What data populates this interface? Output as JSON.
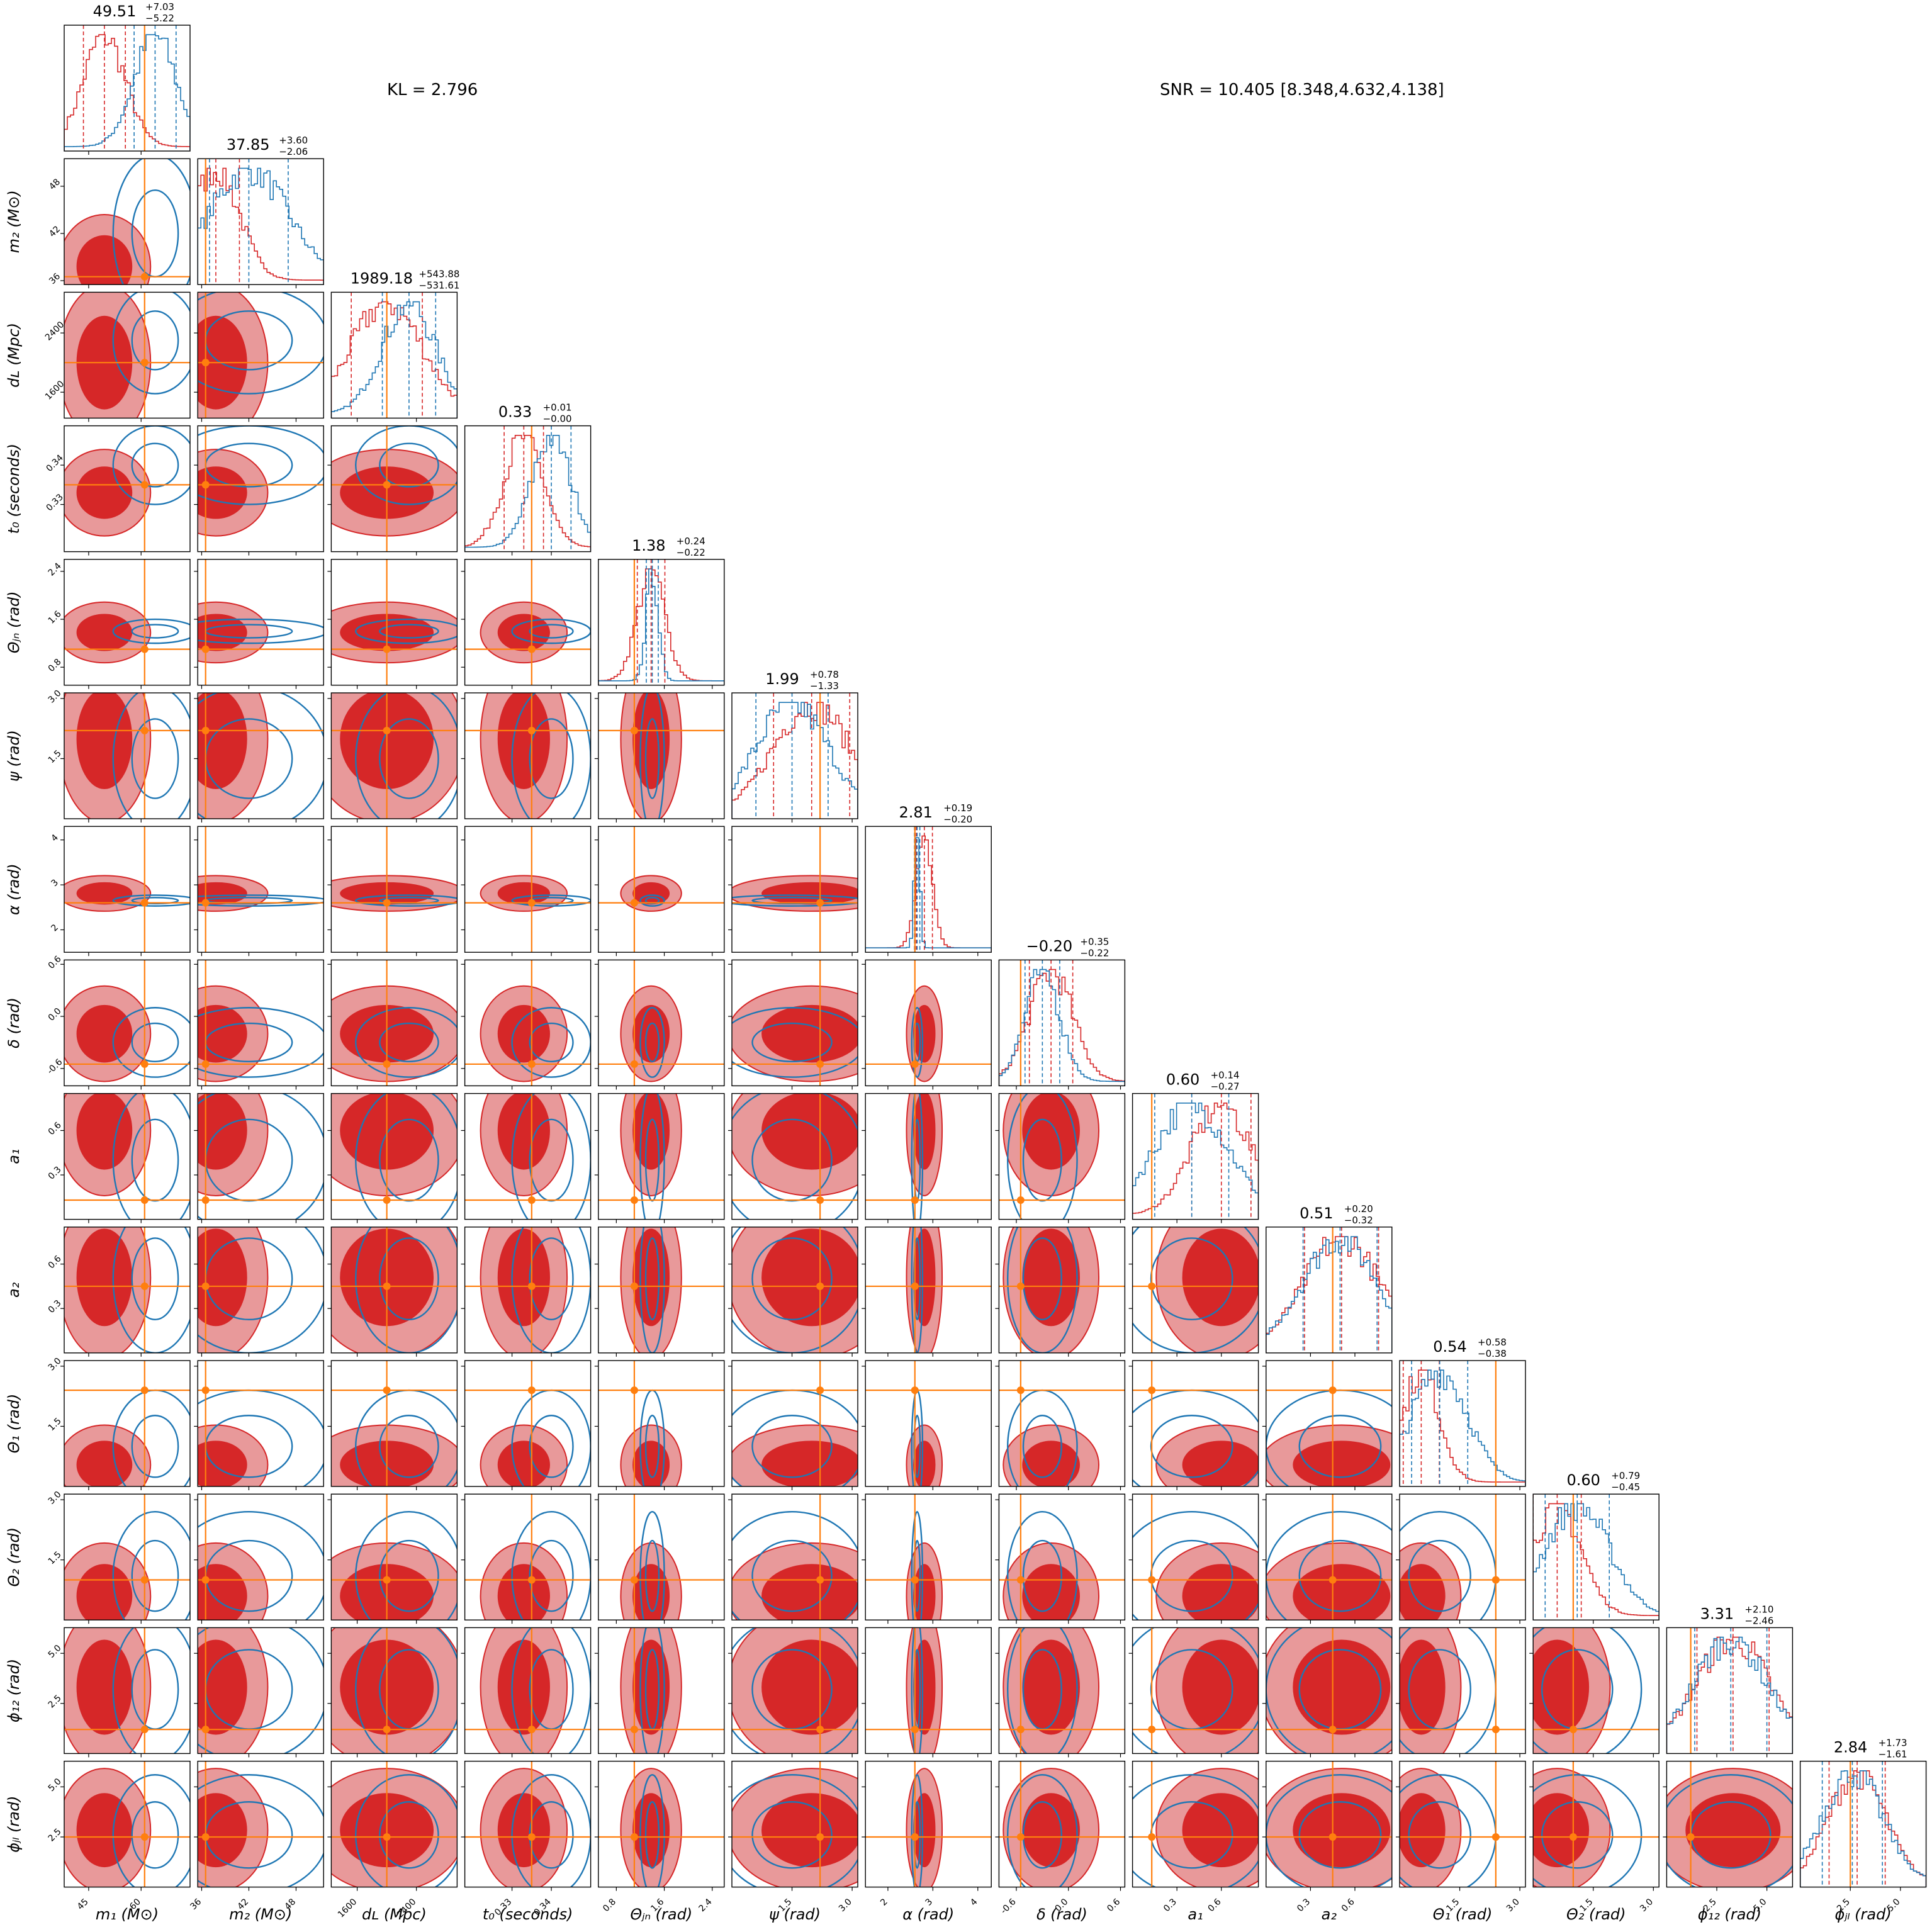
{
  "header": {
    "kl_text": "KL = 2.796",
    "snr_text": "SNR = 10.405 [8.348,4.632,4.138]"
  },
  "chart_data": {
    "type": "corner",
    "colors": {
      "model_a": "#d62728",
      "model_b": "#1f77b4",
      "truth": "#ff7f0e"
    },
    "series": [
      {
        "color": "#d62728"
      },
      {
        "color": "#1f77b4"
      }
    ],
    "parameters": [
      {
        "label": "m₁ (M⊙)",
        "lim": [
          38,
          74
        ],
        "ticks": [
          "45",
          "60"
        ],
        "tick_values": [
          45,
          60
        ],
        "summary": {
          "median": "49.51",
          "plus": "7.03",
          "minus": "5.22"
        },
        "truth": 61,
        "a": {
          "mu": 49.5,
          "sd": 6
        },
        "b": {
          "mu": 64,
          "sd": 6
        }
      },
      {
        "label": "m₂ (M⊙)",
        "lim": [
          35.5,
          51.5
        ],
        "ticks": [
          "36",
          "42",
          "48"
        ],
        "tick_values": [
          36,
          42,
          48
        ],
        "summary": {
          "median": "37.85",
          "plus": "3.60",
          "minus": "2.06"
        },
        "truth": 36.5,
        "a": {
          "mu": 37.8,
          "sd": 3
        },
        "b": {
          "mu": 42,
          "sd": 5
        }
      },
      {
        "label": "dʟ (Mpc)",
        "lim": [
          1250,
          2950
        ],
        "ticks": [
          "1600",
          "2400"
        ],
        "tick_values": [
          1600,
          2400
        ],
        "summary": {
          "median": "1989.18",
          "plus": "543.88",
          "minus": "531.61"
        },
        "truth": 2000,
        "a": {
          "mu": 2000,
          "sd": 480
        },
        "b": {
          "mu": 2300,
          "sd": 360
        }
      },
      {
        "label": "t₀ (seconds)",
        "lim": [
          0.318,
          0.35
        ],
        "ticks": [
          "0.33",
          "0.34"
        ],
        "tick_values": [
          0.33,
          0.34
        ],
        "summary": {
          "median": "0.33",
          "plus": "0.01",
          "minus": "0.00"
        },
        "truth": 0.335,
        "a": {
          "mu": 0.333,
          "sd": 0.005
        },
        "b": {
          "mu": 0.34,
          "sd": 0.005
        }
      },
      {
        "label": "Θⱼₙ (rad)",
        "lim": [
          0.5,
          2.6
        ],
        "ticks": [
          "0.8",
          "1.6",
          "2.4"
        ],
        "tick_values": [
          0.8,
          1.6,
          2.4
        ],
        "summary": {
          "median": "1.38",
          "plus": "0.24",
          "minus": "0.22"
        },
        "truth": 1.1,
        "a": {
          "mu": 1.38,
          "sd": 0.23
        },
        "b": {
          "mu": 1.4,
          "sd": 0.1
        }
      },
      {
        "label": "ψ (rad)",
        "lim": [
          0.0,
          3.14
        ],
        "ticks": [
          "1.5",
          "3.0"
        ],
        "tick_values": [
          1.5,
          3.0
        ],
        "summary": {
          "median": "1.99",
          "plus": "0.78",
          "minus": "1.33"
        },
        "truth": 2.2,
        "a": {
          "mu": 1.99,
          "sd": 0.95
        },
        "b": {
          "mu": 1.5,
          "sd": 0.9
        }
      },
      {
        "label": "α (rad)",
        "lim": [
          1.5,
          4.3
        ],
        "ticks": [
          "2",
          "3",
          "4"
        ],
        "tick_values": [
          2,
          3,
          4
        ],
        "summary": {
          "median": "2.81",
          "plus": "0.19",
          "minus": "0.20"
        },
        "truth": 2.6,
        "a": {
          "mu": 2.81,
          "sd": 0.18
        },
        "b": {
          "mu": 2.65,
          "sd": 0.06
        }
      },
      {
        "label": "δ (rad)",
        "lim": [
          -0.8,
          0.65
        ],
        "ticks": [
          "-0.6",
          "0.0",
          "0.6"
        ],
        "tick_values": [
          -0.6,
          0.0,
          0.6
        ],
        "summary": {
          "median": "−0.20",
          "plus": "0.35",
          "minus": "0.22"
        },
        "truth": -0.55,
        "a": {
          "mu": -0.2,
          "sd": 0.25
        },
        "b": {
          "mu": -0.3,
          "sd": 0.2
        }
      },
      {
        "label": "a₁",
        "lim": [
          0.0,
          0.85
        ],
        "ticks": [
          "0.3",
          "0.6"
        ],
        "tick_values": [
          0.3,
          0.6
        ],
        "summary": {
          "median": "0.60",
          "plus": "0.14",
          "minus": "0.27"
        },
        "truth": 0.13,
        "a": {
          "mu": 0.6,
          "sd": 0.2
        },
        "b": {
          "mu": 0.4,
          "sd": 0.25
        }
      },
      {
        "label": "a₂",
        "lim": [
          0.0,
          0.85
        ],
        "ticks": [
          "0.3",
          "0.6"
        ],
        "tick_values": [
          0.3,
          0.6
        ],
        "summary": {
          "median": "0.51",
          "plus": "0.20",
          "minus": "0.32"
        },
        "truth": 0.45,
        "a": {
          "mu": 0.51,
          "sd": 0.25
        },
        "b": {
          "mu": 0.5,
          "sd": 0.25
        }
      },
      {
        "label": "Θ₁ (rad)",
        "lim": [
          0.0,
          3.14
        ],
        "ticks": [
          "1.5",
          "3.0"
        ],
        "tick_values": [
          1.5,
          3.0
        ],
        "summary": {
          "median": "0.54",
          "plus": "0.58",
          "minus": "0.38"
        },
        "truth": 2.4,
        "a": {
          "mu": 0.54,
          "sd": 0.45
        },
        "b": {
          "mu": 1.0,
          "sd": 0.7
        }
      },
      {
        "label": "Θ₂ (rad)",
        "lim": [
          0.0,
          3.14
        ],
        "ticks": [
          "1.5",
          "3.0"
        ],
        "tick_values": [
          1.5,
          3.0
        ],
        "summary": {
          "median": "0.60",
          "plus": "0.79",
          "minus": "0.45"
        },
        "truth": 1.0,
        "a": {
          "mu": 0.6,
          "sd": 0.6
        },
        "b": {
          "mu": 1.1,
          "sd": 0.8
        }
      },
      {
        "label": "ϕ₁₂ (rad)",
        "lim": [
          0.0,
          6.28
        ],
        "ticks": [
          "2.5",
          "5.0"
        ],
        "tick_values": [
          2.5,
          5.0
        ],
        "summary": {
          "median": "3.31",
          "plus": "2.10",
          "minus": "2.46"
        },
        "truth": 1.2,
        "a": {
          "mu": 3.31,
          "sd": 1.8
        },
        "b": {
          "mu": 3.2,
          "sd": 1.8
        }
      },
      {
        "label": "ϕⱼₗ (rad)",
        "lim": [
          0.0,
          6.28
        ],
        "ticks": [
          "2.5",
          "5.0"
        ],
        "tick_values": [
          2.5,
          5.0
        ],
        "summary": {
          "median": "2.84",
          "plus": "1.73",
          "minus": "1.61"
        },
        "truth": 2.5,
        "a": {
          "mu": 2.84,
          "sd": 1.4
        },
        "b": {
          "mu": 2.6,
          "sd": 1.5
        }
      }
    ]
  }
}
